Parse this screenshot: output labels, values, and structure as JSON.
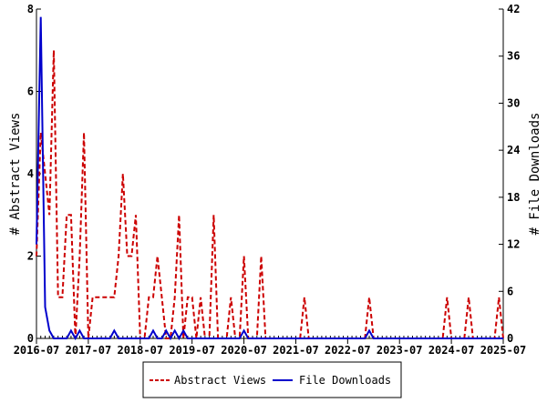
{
  "chart_data": {
    "type": "line",
    "x_start": "2016-07",
    "x_step": "month",
    "x_ticks": [
      "2016-07",
      "2017-07",
      "2018-07",
      "2019-07",
      "2020-07",
      "2021-07",
      "2022-07",
      "2023-07",
      "2024-07",
      "2025-07"
    ],
    "ylabel": "# Abstract Views",
    "y2label": "# File Downloads",
    "ylim": [
      0,
      8
    ],
    "y_ticks": [
      0,
      2,
      4,
      6,
      8
    ],
    "y2lim": [
      0,
      42
    ],
    "y2_ticks": [
      0,
      6,
      12,
      18,
      24,
      30,
      36,
      42
    ],
    "legend_position": "bottom-center",
    "series": [
      {
        "name": "Abstract Views",
        "axis": "left",
        "color": "#cc0000",
        "style": "dashed",
        "values": [
          2,
          5,
          4,
          3,
          7,
          1,
          1,
          3,
          3,
          0,
          2,
          5,
          0,
          1,
          1,
          1,
          1,
          1,
          1,
          2,
          4,
          2,
          2,
          3,
          0,
          0,
          1,
          1,
          2,
          1,
          0,
          0,
          1,
          3,
          0,
          1,
          1,
          0,
          1,
          0,
          0,
          3,
          0,
          0,
          0,
          1,
          0,
          0,
          2,
          0,
          0,
          0,
          2,
          0,
          0,
          0,
          0,
          0,
          0,
          0,
          0,
          0,
          1,
          0,
          0,
          0,
          0,
          0,
          0,
          0,
          0,
          0,
          0,
          0,
          0,
          0,
          0,
          1,
          0,
          0,
          0,
          0,
          0,
          0,
          0,
          0,
          0,
          0,
          0,
          0,
          0,
          0,
          0,
          0,
          0,
          1,
          0,
          0,
          0,
          0,
          1,
          0,
          0,
          0,
          0,
          0,
          0,
          1,
          0
        ]
      },
      {
        "name": "File Downloads",
        "axis": "right",
        "color": "#0000cc",
        "style": "solid",
        "values": [
          12,
          41,
          4,
          1,
          0,
          0,
          0,
          0,
          1,
          0,
          1,
          0,
          0,
          0,
          0,
          0,
          0,
          0,
          1,
          0,
          0,
          0,
          0,
          0,
          0,
          0,
          0,
          1,
          0,
          0,
          1,
          0,
          1,
          0,
          1,
          0,
          0,
          0,
          0,
          0,
          0,
          0,
          0,
          0,
          0,
          0,
          0,
          0,
          1,
          0,
          0,
          0,
          0,
          0,
          0,
          0,
          0,
          0,
          0,
          0,
          0,
          0,
          0,
          0,
          0,
          0,
          0,
          0,
          0,
          0,
          0,
          0,
          0,
          0,
          0,
          0,
          0,
          1,
          0,
          0,
          0,
          0,
          0,
          0,
          0,
          0,
          0,
          0,
          0,
          0,
          0,
          0,
          0,
          0,
          0,
          0,
          0,
          0,
          0,
          0,
          0,
          0,
          0,
          0,
          0,
          0,
          0,
          0,
          0
        ]
      }
    ]
  }
}
